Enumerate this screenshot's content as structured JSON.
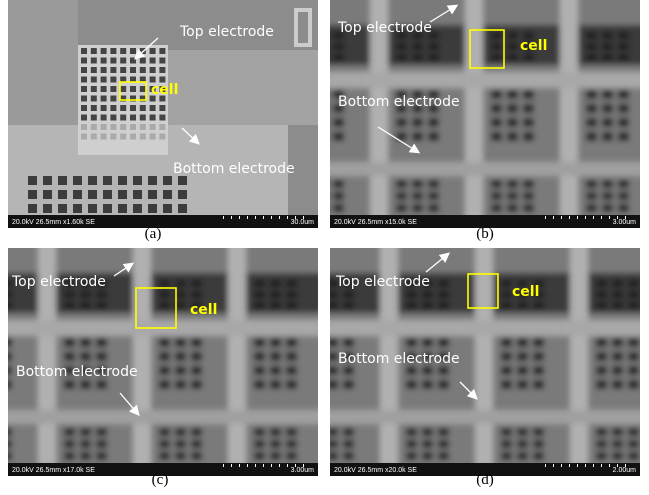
{
  "panels": [
    {
      "top_label": "Top electrode",
      "cell_label": "cell",
      "bottom_label": "Bottom electrode",
      "footer": "20.0kV 26.5mm x1.60k SE",
      "scale": "30.0um",
      "caption": "(a)"
    },
    {
      "top_label": "Top electrode",
      "cell_label": "cell",
      "bottom_label": "Bottom electrode",
      "footer": "20.0kV 26.5mm x15.0k SE",
      "scale": "3.00um",
      "caption": "(b)"
    },
    {
      "top_label": "Top electrode",
      "cell_label": "cell",
      "bottom_label": "Bottom electrode",
      "footer": "20.0kV 26.5mm x17.0k SE",
      "scale": "3.00um",
      "caption": "(c)"
    },
    {
      "top_label": "Top electrode",
      "cell_label": "cell",
      "bottom_label": "Bottom electrode",
      "footer": "20.0kV 26.5mm x20.0k SE",
      "scale": "2.00um",
      "caption": "(d)"
    }
  ]
}
